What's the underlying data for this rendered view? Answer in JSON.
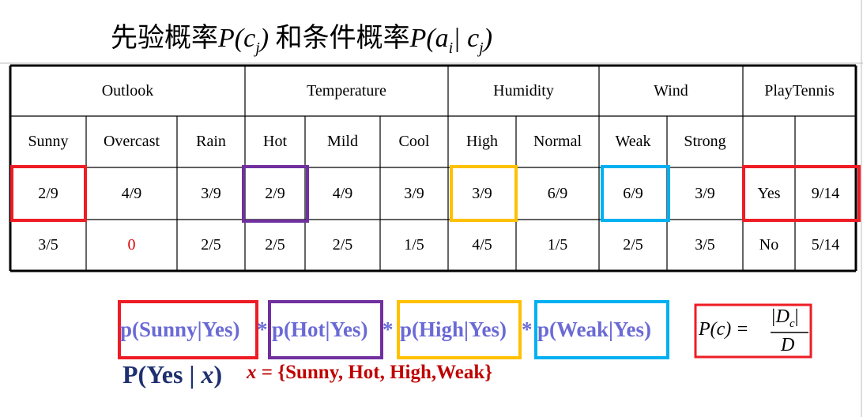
{
  "title": [
    "先验概率",
    "P(c",
    "j",
    ")",
    " 和条件概率",
    "P(a",
    "i",
    "| c",
    "j",
    ")"
  ],
  "table": {
    "groups": [
      "Outlook",
      "Temperature",
      "Humidity",
      "Wind",
      "PlayTennis"
    ],
    "attributes": [
      "Sunny",
      "Overcast",
      "Rain",
      "Hot",
      "Mild",
      "Cool",
      "High",
      "Normal",
      "Weak",
      "Strong"
    ],
    "rows": [
      [
        "2/9",
        "4/9",
        "3/9",
        "2/9",
        "4/9",
        "3/9",
        "3/9",
        "6/9",
        "6/9",
        "3/9",
        "Yes",
        "9/14"
      ],
      [
        "3/5",
        "0",
        "2/5",
        "2/5",
        "2/5",
        "1/5",
        "4/5",
        "1/5",
        "2/5",
        "3/5",
        "No",
        "5/14"
      ]
    ]
  },
  "formula": [
    "p(Sunny|Yes)",
    "*",
    "p(Hot|Yes)",
    "*",
    "p(High|Yes)",
    "*",
    "p(Weak|Yes)"
  ],
  "prior_formula": [
    "P(c) =",
    "|D",
    "c",
    "|",
    "D"
  ],
  "posterior": [
    "P(Yes | ",
    "x",
    ")"
  ],
  "sample": [
    "x",
    " = {Sunny, Hot, High,Weak}"
  ]
}
